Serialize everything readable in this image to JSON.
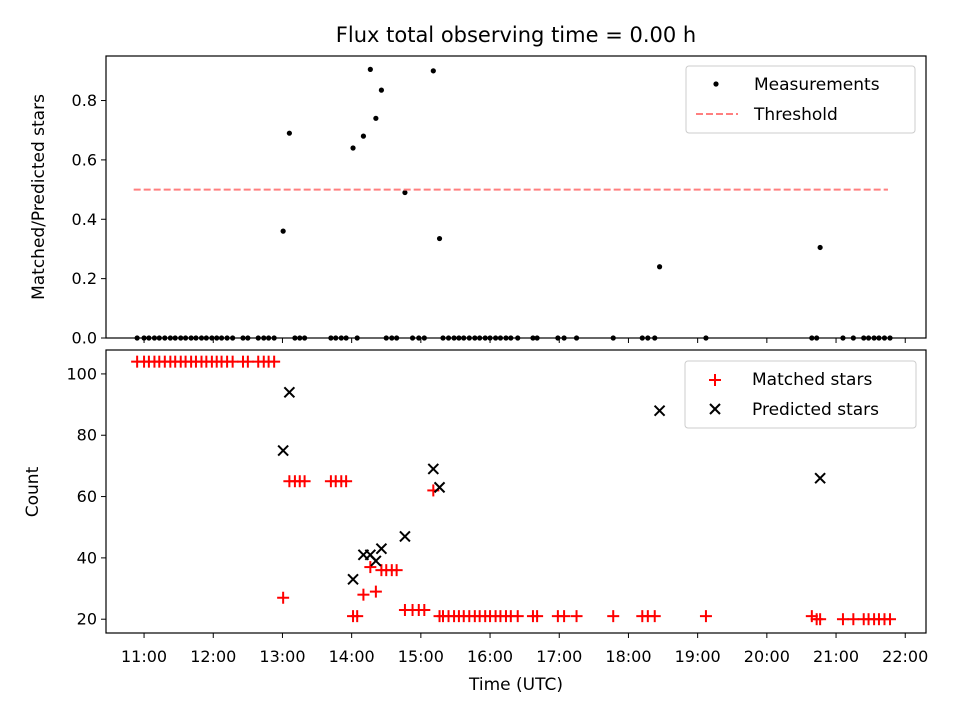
{
  "chart_data": {
    "title": "Flux total observing time = 0.00 h",
    "xlabel": "Time (UTC)",
    "xlim_hours": [
      10.45,
      22.3
    ],
    "xticks": [
      "11:00",
      "12:00",
      "13:00",
      "14:00",
      "15:00",
      "16:00",
      "17:00",
      "18:00",
      "19:00",
      "20:00",
      "21:00",
      "22:00"
    ],
    "panels": [
      {
        "type": "scatter",
        "ylabel": "Matched/Predicted stars",
        "ylim": [
          0,
          0.95
        ],
        "yticks": [
          "0.0",
          "0.2",
          "0.4",
          "0.6",
          "0.8"
        ],
        "legend": {
          "position": "top-right"
        },
        "series": [
          {
            "name": "Measurements",
            "color": "#000000",
            "marker": "dot",
            "points": [
              [
                13.01,
                0.36
              ],
              [
                13.1,
                0.69
              ],
              [
                14.02,
                0.64
              ],
              [
                14.17,
                0.68
              ],
              [
                14.27,
                0.905
              ],
              [
                14.35,
                0.74
              ],
              [
                14.43,
                0.835
              ],
              [
                14.77,
                0.49
              ],
              [
                15.18,
                0.9
              ],
              [
                15.27,
                0.335
              ],
              [
                18.45,
                0.24
              ],
              [
                20.77,
                0.305
              ],
              [
                10.9,
                0.0
              ],
              [
                11.0,
                0.0
              ],
              [
                11.07,
                0.0
              ],
              [
                11.15,
                0.0
              ],
              [
                11.22,
                0.0
              ],
              [
                11.3,
                0.0
              ],
              [
                11.38,
                0.0
              ],
              [
                11.45,
                0.0
              ],
              [
                11.53,
                0.0
              ],
              [
                11.6,
                0.0
              ],
              [
                11.68,
                0.0
              ],
              [
                11.75,
                0.0
              ],
              [
                11.83,
                0.0
              ],
              [
                11.9,
                0.0
              ],
              [
                11.98,
                0.0
              ],
              [
                12.05,
                0.0
              ],
              [
                12.12,
                0.0
              ],
              [
                12.2,
                0.0
              ],
              [
                12.28,
                0.0
              ],
              [
                12.43,
                0.0
              ],
              [
                12.5,
                0.0
              ],
              [
                12.65,
                0.0
              ],
              [
                12.73,
                0.0
              ],
              [
                12.8,
                0.0
              ],
              [
                12.88,
                0.0
              ],
              [
                13.18,
                0.0
              ],
              [
                13.25,
                0.0
              ],
              [
                13.32,
                0.0
              ],
              [
                13.7,
                0.0
              ],
              [
                13.77,
                0.0
              ],
              [
                13.85,
                0.0
              ],
              [
                13.92,
                0.0
              ],
              [
                14.08,
                0.0
              ],
              [
                14.5,
                0.0
              ],
              [
                14.58,
                0.0
              ],
              [
                14.65,
                0.0
              ],
              [
                14.88,
                0.0
              ],
              [
                14.97,
                0.0
              ],
              [
                15.05,
                0.0
              ],
              [
                15.32,
                0.0
              ],
              [
                15.4,
                0.0
              ],
              [
                15.48,
                0.0
              ],
              [
                15.55,
                0.0
              ],
              [
                15.62,
                0.0
              ],
              [
                15.7,
                0.0
              ],
              [
                15.78,
                0.0
              ],
              [
                15.85,
                0.0
              ],
              [
                15.93,
                0.0
              ],
              [
                16.0,
                0.0
              ],
              [
                16.08,
                0.0
              ],
              [
                16.15,
                0.0
              ],
              [
                16.23,
                0.0
              ],
              [
                16.3,
                0.0
              ],
              [
                16.4,
                0.0
              ],
              [
                16.62,
                0.0
              ],
              [
                16.68,
                0.0
              ],
              [
                16.98,
                0.0
              ],
              [
                17.07,
                0.0
              ],
              [
                17.25,
                0.0
              ],
              [
                17.78,
                0.0
              ],
              [
                18.2,
                0.0
              ],
              [
                18.28,
                0.0
              ],
              [
                18.38,
                0.0
              ],
              [
                19.12,
                0.0
              ],
              [
                20.65,
                0.0
              ],
              [
                20.72,
                0.0
              ],
              [
                21.1,
                0.0
              ],
              [
                21.25,
                0.0
              ],
              [
                21.4,
                0.0
              ],
              [
                21.47,
                0.0
              ],
              [
                21.55,
                0.0
              ],
              [
                21.62,
                0.0
              ],
              [
                21.7,
                0.0
              ],
              [
                21.78,
                0.0
              ]
            ]
          },
          {
            "name": "Threshold",
            "color": "#ff7f7f",
            "style": "dashed",
            "line": [
              [
                10.85,
                0.5
              ],
              [
                21.75,
                0.5
              ]
            ]
          }
        ]
      },
      {
        "type": "scatter",
        "ylabel": "Count",
        "ylim": [
          15.5,
          107.8
        ],
        "yticks": [
          "20",
          "40",
          "60",
          "80",
          "100"
        ],
        "legend": {
          "position": "top-right"
        },
        "series": [
          {
            "name": "Matched stars",
            "color": "#ff0000",
            "marker": "plus",
            "points": [
              [
                10.9,
                104
              ],
              [
                11.0,
                104
              ],
              [
                11.07,
                104
              ],
              [
                11.15,
                104
              ],
              [
                11.22,
                104
              ],
              [
                11.3,
                104
              ],
              [
                11.38,
                104
              ],
              [
                11.45,
                104
              ],
              [
                11.53,
                104
              ],
              [
                11.6,
                104
              ],
              [
                11.68,
                104
              ],
              [
                11.75,
                104
              ],
              [
                11.83,
                104
              ],
              [
                11.9,
                104
              ],
              [
                11.98,
                104
              ],
              [
                12.05,
                104
              ],
              [
                12.12,
                104
              ],
              [
                12.2,
                104
              ],
              [
                12.28,
                104
              ],
              [
                12.43,
                104
              ],
              [
                12.5,
                104
              ],
              [
                12.65,
                104
              ],
              [
                12.73,
                104
              ],
              [
                12.8,
                104
              ],
              [
                12.88,
                104
              ],
              [
                13.01,
                27
              ],
              [
                13.1,
                65
              ],
              [
                13.18,
                65
              ],
              [
                13.25,
                65
              ],
              [
                13.32,
                65
              ],
              [
                13.7,
                65
              ],
              [
                13.77,
                65
              ],
              [
                13.85,
                65
              ],
              [
                13.92,
                65
              ],
              [
                14.02,
                21
              ],
              [
                14.08,
                21
              ],
              [
                14.17,
                28
              ],
              [
                14.27,
                37
              ],
              [
                14.35,
                29
              ],
              [
                14.43,
                36
              ],
              [
                14.5,
                36
              ],
              [
                14.58,
                36
              ],
              [
                14.65,
                36
              ],
              [
                14.77,
                23
              ],
              [
                14.88,
                23
              ],
              [
                14.97,
                23
              ],
              [
                15.05,
                23
              ],
              [
                15.18,
                62
              ],
              [
                15.27,
                21
              ],
              [
                15.32,
                21
              ],
              [
                15.4,
                21
              ],
              [
                15.48,
                21
              ],
              [
                15.55,
                21
              ],
              [
                15.62,
                21
              ],
              [
                15.7,
                21
              ],
              [
                15.78,
                21
              ],
              [
                15.85,
                21
              ],
              [
                15.93,
                21
              ],
              [
                16.0,
                21
              ],
              [
                16.08,
                21
              ],
              [
                16.15,
                21
              ],
              [
                16.23,
                21
              ],
              [
                16.3,
                21
              ],
              [
                16.4,
                21
              ],
              [
                16.62,
                21
              ],
              [
                16.68,
                21
              ],
              [
                16.98,
                21
              ],
              [
                17.07,
                21
              ],
              [
                17.25,
                21
              ],
              [
                17.78,
                21
              ],
              [
                18.2,
                21
              ],
              [
                18.28,
                21
              ],
              [
                18.38,
                21
              ],
              [
                19.12,
                21
              ],
              [
                20.65,
                21
              ],
              [
                20.72,
                20
              ],
              [
                20.77,
                20
              ],
              [
                21.1,
                20
              ],
              [
                21.25,
                20
              ],
              [
                21.4,
                20
              ],
              [
                21.47,
                20
              ],
              [
                21.55,
                20
              ],
              [
                21.62,
                20
              ],
              [
                21.7,
                20
              ],
              [
                21.78,
                20
              ]
            ]
          },
          {
            "name": "Predicted stars",
            "color": "#000000",
            "marker": "x",
            "points": [
              [
                13.01,
                75
              ],
              [
                13.1,
                94
              ],
              [
                14.02,
                33
              ],
              [
                14.17,
                41
              ],
              [
                14.27,
                41
              ],
              [
                14.35,
                39
              ],
              [
                14.43,
                43
              ],
              [
                14.77,
                47
              ],
              [
                15.18,
                69
              ],
              [
                15.27,
                63
              ],
              [
                18.45,
                88
              ],
              [
                20.77,
                66
              ]
            ]
          }
        ]
      }
    ]
  }
}
